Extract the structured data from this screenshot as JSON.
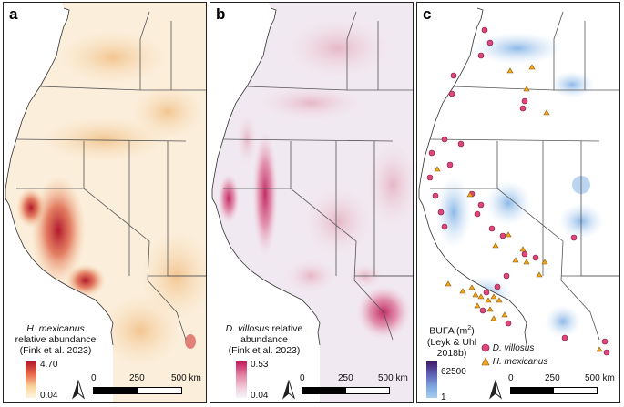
{
  "panels": [
    {
      "letter": "a",
      "legend": {
        "species": "H. mexicanus",
        "line1": "relative abundance",
        "line2": "(Fink et al. 2023)"
      },
      "scale": {
        "max": "4.70",
        "min": "0.04",
        "colors": [
          "#b2182b",
          "#e96a4a",
          "#f9d8a0",
          "#fdf3e1"
        ]
      },
      "distance": {
        "zero": "0",
        "mid": "250",
        "end": "500 km"
      }
    },
    {
      "letter": "b",
      "legend": {
        "species": "D. villosus",
        "line1": "relative",
        "line2": "abundance",
        "line3": "(Fink et al. 2023)"
      },
      "scale": {
        "max": "0.53",
        "min": "0.04",
        "colors": [
          "#c2185b",
          "#e58aa8",
          "#f3d2df",
          "#f5f4fb"
        ]
      },
      "distance": {
        "zero": "0",
        "mid": "250",
        "end": "500 km"
      }
    },
    {
      "letter": "c",
      "legend": {
        "line1": "BUFA (m",
        "sup": "2",
        "line1b": ")",
        "line2": "(Leyk & Uhl",
        "line3": "2018b)"
      },
      "scale": {
        "max": "62500",
        "min": "1",
        "colors": [
          "#3f1a6b",
          "#5f5fb5",
          "#7fa9de",
          "#a9cdf0"
        ]
      },
      "symbols": [
        {
          "label": "D. villosus",
          "color": "#e0457b"
        },
        {
          "label": "H. mexicanus",
          "color": "#f2a51c"
        }
      ],
      "distance": {
        "zero": "0",
        "mid": "250",
        "end": "500 km"
      }
    }
  ],
  "north_arrow": "north-arrow-icon"
}
